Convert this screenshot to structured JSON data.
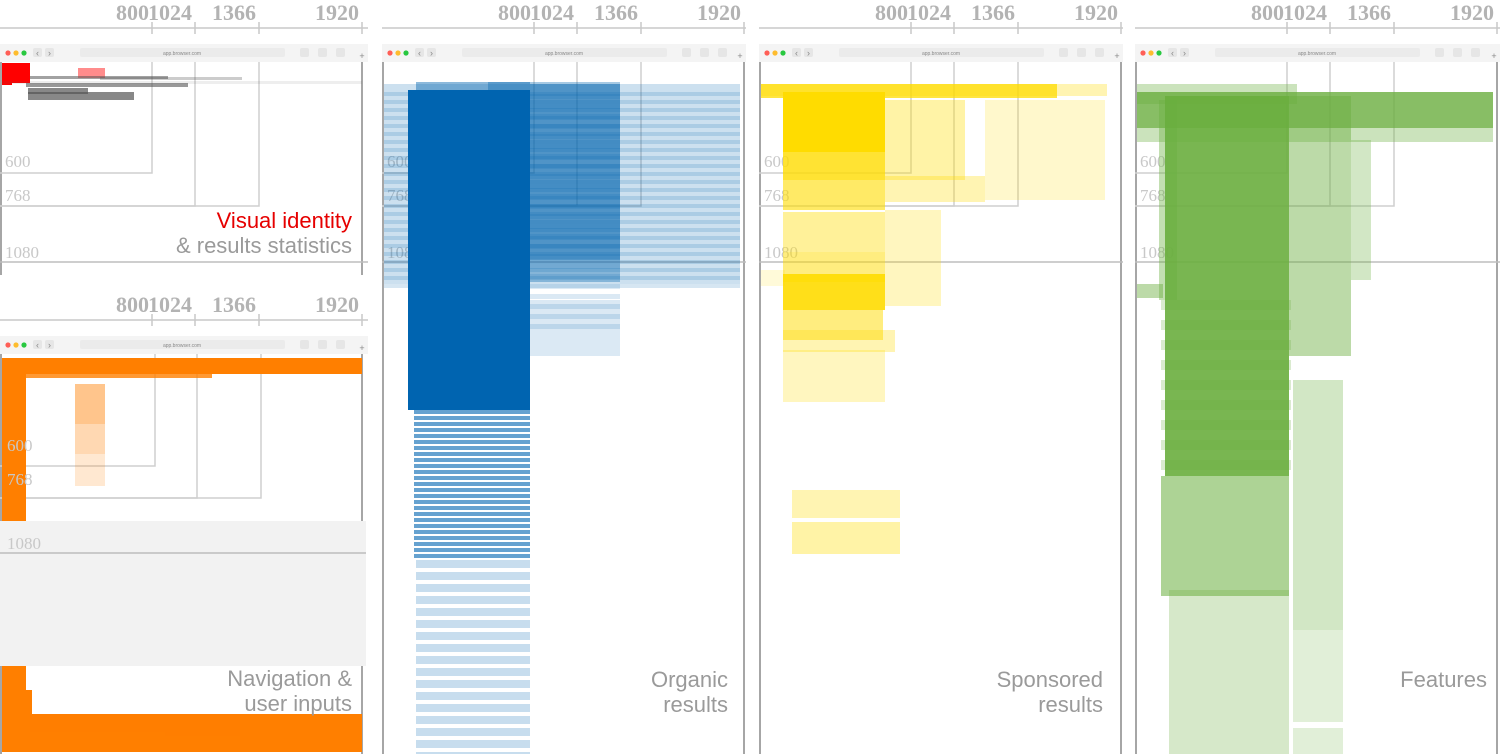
{
  "widths": [
    "800",
    "1024",
    "1366",
    "1920"
  ],
  "heights": [
    "600",
    "768",
    "1080"
  ],
  "browser": {
    "url": "app.browser.com",
    "new_tab": "+"
  },
  "colors": {
    "visual": "#ff0000",
    "navigation": "#ff7f00",
    "organic": "#0064b0",
    "sponsored": "#ffdc00",
    "features": "#6aae3e",
    "guide": "#c8c8c8",
    "label": "#9a9a9a",
    "accent": "#e60000"
  },
  "panels": {
    "visual_identity": {
      "label_accent": "Visual identity",
      "label_rest": "& results statistics"
    },
    "navigation": {
      "label_line1": "Navigation &",
      "label_line2": "user inputs"
    },
    "organic": {
      "label_line1": "Organic",
      "label_line2": "results"
    },
    "sponsored": {
      "label_line1": "Sponsored",
      "label_line2": "results"
    },
    "features": {
      "label_line1": "Features",
      "label_line2": ""
    }
  }
}
